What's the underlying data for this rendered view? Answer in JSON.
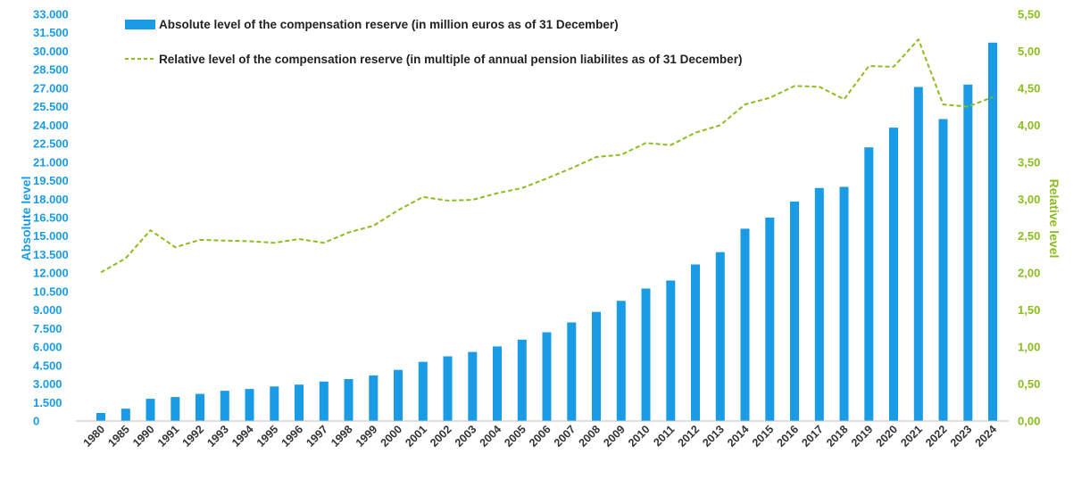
{
  "chart_data": {
    "type": "bar",
    "categories": [
      "1980",
      "1985",
      "1990",
      "1991",
      "1992",
      "1993",
      "1994",
      "1995",
      "1996",
      "1997",
      "1998",
      "1999",
      "2000",
      "2001",
      "2002",
      "2003",
      "2004",
      "2005",
      "2006",
      "2007",
      "2008",
      "2009",
      "2010",
      "2011",
      "2012",
      "2013",
      "2014",
      "2015",
      "2016",
      "2017",
      "2018",
      "2019",
      "2020",
      "2021",
      "2022",
      "2023",
      "2024"
    ],
    "series": [
      {
        "name": "Absolute level of the compensation reserve (in million euros as of 31 December)",
        "type": "bar",
        "axis": "left",
        "color": "#1a9be6",
        "values": [
          650,
          1000,
          1800,
          1950,
          2200,
          2450,
          2600,
          2800,
          2950,
          3200,
          3400,
          3700,
          4150,
          4800,
          5250,
          5600,
          6050,
          6600,
          7200,
          8000,
          8850,
          9750,
          10750,
          11400,
          12700,
          13700,
          15600,
          16500,
          17800,
          18900,
          19000,
          22200,
          23800,
          27100,
          24500,
          27300,
          30700
        ]
      },
      {
        "name": "Relative level of the compensation reserve (in multiple of annual pension liabilites as of 31 December)",
        "type": "line",
        "style": "dashed",
        "axis": "right",
        "color": "#8cbd1e",
        "values": [
          2.01,
          2.2,
          2.58,
          2.35,
          2.45,
          2.44,
          2.43,
          2.41,
          2.46,
          2.41,
          2.55,
          2.64,
          2.85,
          3.03,
          2.98,
          2.99,
          3.08,
          3.15,
          3.28,
          3.42,
          3.57,
          3.6,
          3.76,
          3.73,
          3.9,
          4.0,
          4.28,
          4.37,
          4.53,
          4.52,
          4.35,
          4.8,
          4.79,
          5.16,
          4.28,
          4.25,
          4.38
        ]
      }
    ],
    "ylabel": "Absolute level",
    "y2label": "Relative level",
    "ylim": [
      0,
      33000
    ],
    "y2lim": [
      0,
      5.5
    ],
    "yticks": [
      "0",
      "1.500",
      "3.000",
      "4.500",
      "6.000",
      "7.500",
      "9.000",
      "10.500",
      "12.000",
      "13.500",
      "15.000",
      "16.500",
      "18.000",
      "19.500",
      "21.000",
      "22.500",
      "24.000",
      "25.500",
      "27.000",
      "28.500",
      "30.000",
      "31.500",
      "33.000"
    ],
    "y2ticks": [
      "0,00",
      "0,50",
      "1,00",
      "1,50",
      "2,00",
      "2,50",
      "3,00",
      "3,50",
      "4,00",
      "4,50",
      "5,00",
      "5,50"
    ],
    "grid": false,
    "legend_position": "top-left"
  }
}
